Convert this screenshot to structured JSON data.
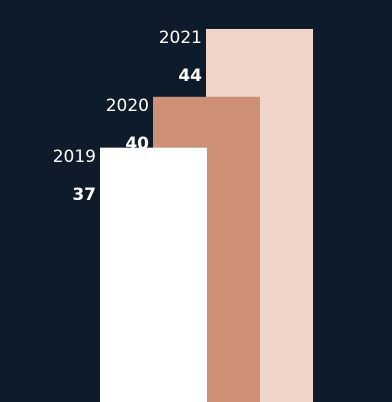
{
  "colors": {
    "background": "#0d1b2a"
  },
  "chart_data": {
    "type": "bar",
    "title": "",
    "xlabel": "",
    "ylabel": "",
    "categories": [
      "2019",
      "2020",
      "2021"
    ],
    "values": [
      37,
      40,
      44
    ],
    "value_labels": [
      "37",
      "40",
      "44"
    ],
    "colors": [
      "#ffffff",
      "#cd9076",
      "#f0d6ca"
    ],
    "ylim": [
      22,
      45
    ],
    "grid": false,
    "legend": "none"
  }
}
